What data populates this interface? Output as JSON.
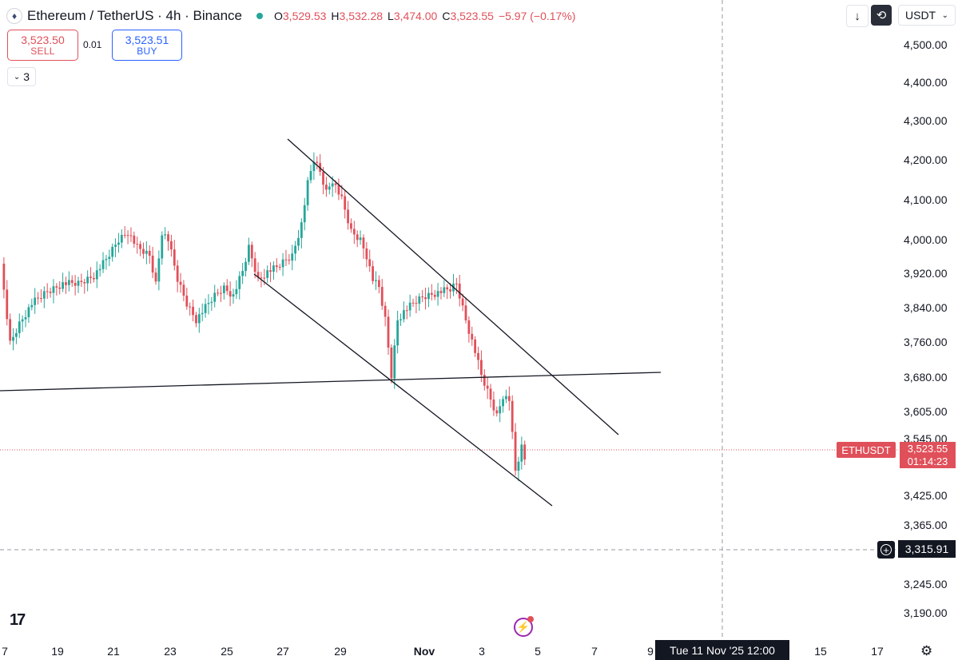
{
  "header": {
    "logo_icon": "ethereum-icon",
    "symbol": "Ethereum / TetherUS · 4h · Binance",
    "ohlc": [
      {
        "key": "O",
        "value": "3,529.53"
      },
      {
        "key": "H",
        "value": "3,532.28"
      },
      {
        "key": "L",
        "value": "3,474.00"
      },
      {
        "key": "C",
        "value": "3,523.55"
      }
    ],
    "change": "−5.97 (−0.17%)"
  },
  "trade": {
    "sell_price": "3,523.50",
    "sell_label": "SELL",
    "spread": "0.01",
    "buy_price": "3,523.51",
    "buy_label": "BUY"
  },
  "indicator_count": "3",
  "toolbar": {
    "download_icon": "arrow-down-icon",
    "loop_icon": "replay-icon",
    "currency": "USDT"
  },
  "price_axis": {
    "ticks": [
      "4,500.00",
      "4,400.00",
      "4,300.00",
      "4,200.00",
      "4,100.00",
      "4,000.00",
      "3,920.00",
      "3,840.00",
      "3,760.00",
      "3,680.00",
      "3,605.00",
      "3,545.00",
      "3,425.00",
      "3,365.00",
      "3,245.00",
      "3,190.00"
    ]
  },
  "time_axis": {
    "ticks": [
      "7",
      "19",
      "21",
      "23",
      "25",
      "27",
      "29",
      "Nov",
      "3",
      "5",
      "7",
      "9",
      "15",
      "17"
    ]
  },
  "last_price": {
    "symbol": "ETHUSDT",
    "price": "3,523.55",
    "countdown": "01:14:23"
  },
  "crosshair": {
    "price": "3,315.91",
    "time": "Tue 11 Nov '25   12:00"
  },
  "colors": {
    "up": "#26a69a",
    "down": "#e0505a",
    "accent": "#2962ff",
    "dark": "#131722"
  },
  "chart_data": {
    "type": "candlestick",
    "instrument": "ETHUSDT",
    "interval": "4h",
    "exchange": "Binance",
    "ylim": [
      3190,
      4500
    ],
    "current_price": 3523.55,
    "crosshair_price": 3315.91,
    "drawings": [
      {
        "type": "trend-line",
        "from": [
          "Oct 27",
          4250
        ],
        "to": [
          "Nov 6",
          3555
        ]
      },
      {
        "type": "trend-line",
        "from": [
          "Oct 26",
          3915
        ],
        "to": [
          "Nov 5",
          3400
        ]
      },
      {
        "type": "horizontal-trend-line",
        "from": [
          "Oct 16",
          3650
        ],
        "to": [
          "Nov 9",
          3690
        ]
      }
    ]
  }
}
